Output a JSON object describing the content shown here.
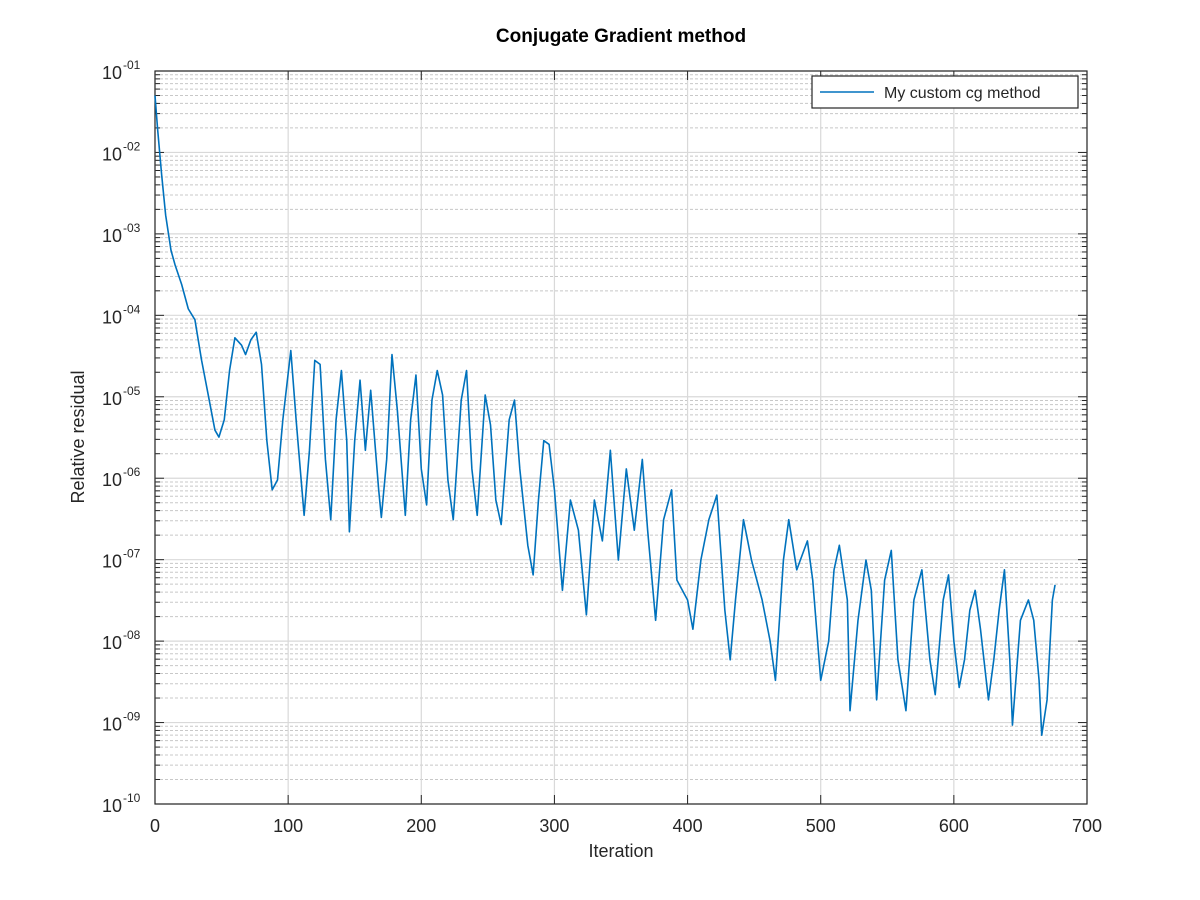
{
  "chart_data": {
    "type": "line",
    "title": "Conjugate Gradient method",
    "x_label": "Iteration",
    "y_label": "Relative residual",
    "log_y": true,
    "grid": true,
    "minor_grid": true,
    "legend": "northeast",
    "xlim": [
      0,
      700
    ],
    "xticks": [
      0,
      100,
      200,
      300,
      400,
      500,
      600,
      700
    ],
    "ylim": [
      1e-10,
      0.1
    ],
    "yticks": [
      {
        "value": 1e-10,
        "label": "10",
        "exponent": "-10"
      },
      {
        "value": 1e-09,
        "label": "10",
        "exponent": "-09"
      },
      {
        "value": 1e-08,
        "label": "10",
        "exponent": "-08"
      },
      {
        "value": 1e-07,
        "label": "10",
        "exponent": "-07"
      },
      {
        "value": 1e-06,
        "label": "10",
        "exponent": "-06"
      },
      {
        "value": 1e-05,
        "label": "10",
        "exponent": "-05"
      },
      {
        "value": 0.0001,
        "label": "10",
        "exponent": "-04"
      },
      {
        "value": 0.001,
        "label": "10",
        "exponent": "-03"
      },
      {
        "value": 0.01,
        "label": "10",
        "exponent": "-02"
      },
      {
        "value": 0.1,
        "label": "10",
        "exponent": "-01"
      }
    ],
    "x": [
      0,
      2,
      5,
      8,
      12,
      15,
      20,
      25,
      30,
      35,
      40,
      45,
      48,
      52,
      56,
      60,
      65,
      68,
      72,
      76,
      80,
      84,
      88,
      92,
      96,
      102,
      106,
      112,
      116,
      120,
      124,
      128,
      132,
      136,
      140,
      144,
      146,
      150,
      154,
      158,
      162,
      168,
      170,
      174,
      178,
      182,
      186,
      188,
      192,
      196,
      200,
      204,
      208,
      212,
      216,
      220,
      224,
      230,
      234,
      238,
      242,
      248,
      252,
      256,
      260,
      266,
      270,
      274,
      280,
      284,
      288,
      292,
      296,
      300,
      306,
      312,
      318,
      324,
      330,
      336,
      342,
      348,
      354,
      360,
      366,
      370,
      376,
      382,
      388,
      392,
      400,
      404,
      410,
      416,
      422,
      428,
      432,
      436,
      442,
      448,
      456,
      462,
      466,
      472,
      476,
      482,
      490,
      494,
      500,
      506,
      510,
      514,
      520,
      522,
      528,
      534,
      538,
      542,
      548,
      553,
      558,
      564,
      570,
      576,
      582,
      586,
      592,
      596,
      600,
      604,
      608,
      612,
      616,
      620,
      626,
      630,
      634,
      638,
      642,
      644,
      650,
      656,
      660,
      664,
      666,
      670,
      674,
      676
    ],
    "series": [
      {
        "name": "My custom cg method",
        "color": "#0072bd",
        "values": [
          0.05,
          0.019,
          0.0053,
          0.0017,
          0.00063,
          0.00042,
          0.00024,
          0.00012,
          8.8e-05,
          2.8e-05,
          1.05e-05,
          3.9e-06,
          3.2e-06,
          5.2e-06,
          2.1e-05,
          5.3e-05,
          4.3e-05,
          3.3e-05,
          5e-05,
          6.2e-05,
          2.5e-05,
          2.9e-06,
          7.2e-07,
          9.5e-07,
          5.2e-06,
          3.7e-05,
          5.2e-06,
          3.5e-07,
          2.2e-06,
          2.8e-05,
          2.5e-05,
          1.7e-06,
          3.1e-07,
          5.2e-06,
          2.1e-05,
          2.9e-06,
          2.2e-07,
          2.9e-06,
          1.6e-05,
          2.2e-06,
          1.2e-05,
          7.2e-07,
          3.3e-07,
          1.7e-06,
          3.3e-05,
          6.9e-06,
          9.5e-07,
          3.5e-07,
          5.2e-06,
          1.85e-05,
          1.3e-06,
          4.7e-07,
          9.1e-06,
          2.1e-05,
          1.05e-05,
          9.5e-07,
          3.1e-07,
          9.1e-06,
          2.1e-05,
          1.3e-06,
          3.5e-07,
          1.05e-05,
          4.5e-06,
          5.4e-07,
          2.7e-07,
          5.2e-06,
          9.1e-06,
          1.3e-06,
          1.5e-07,
          6.5e-08,
          5.4e-07,
          2.9e-06,
          2.6e-06,
          7.2e-07,
          4.2e-08,
          5.4e-07,
          2.3e-07,
          2.1e-08,
          5.4e-07,
          1.7e-07,
          2.2e-06,
          9.9e-08,
          1.3e-06,
          2.3e-07,
          1.7e-06,
          2.3e-07,
          1.8e-08,
          3.1e-07,
          7.2e-07,
          5.6e-08,
          3.2e-08,
          1.4e-08,
          9.9e-08,
          3.1e-07,
          6.2e-07,
          2.4e-08,
          5.9e-09,
          3.2e-08,
          3.1e-07,
          9.9e-08,
          3.2e-08,
          1e-08,
          3.3e-09,
          9.9e-08,
          3.1e-07,
          7.5e-08,
          1.7e-07,
          5.6e-08,
          3.3e-09,
          1e-08,
          7.5e-08,
          1.5e-07,
          3.2e-08,
          1.4e-09,
          1.8e-08,
          9.9e-08,
          4.2e-08,
          1.9e-09,
          5.6e-08,
          1.3e-07,
          5.9e-09,
          1.4e-09,
          3.2e-08,
          7.5e-08,
          5.9e-09,
          2.2e-09,
          3.2e-08,
          6.5e-08,
          1e-08,
          2.7e-09,
          5.9e-09,
          2.4e-08,
          4.2e-08,
          1.4e-08,
          1.9e-09,
          5.9e-09,
          2.4e-08,
          7.5e-08,
          5.9e-09,
          9.3e-10,
          1.8e-08,
          3.2e-08,
          1.8e-08,
          3.3e-09,
          7e-10,
          1.9e-09,
          3.2e-08,
          4.9e-08
        ]
      }
    ]
  }
}
